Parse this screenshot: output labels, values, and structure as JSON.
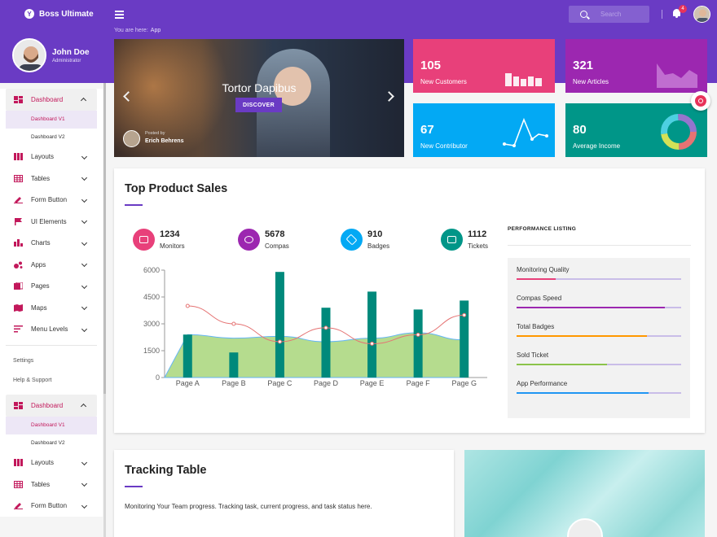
{
  "header": {
    "brand": "Boss Ultimate",
    "breadcrumb_label": "You are here:",
    "breadcrumb_current": "App",
    "search_placeholder": "Search",
    "notification_count": "4"
  },
  "profile": {
    "name": "John Doe",
    "role": "Administrator"
  },
  "sidebar": {
    "menu": [
      {
        "label": "Dashboard",
        "icon": "dashboard-icon",
        "open": true
      },
      {
        "label": "Dashboard V1",
        "sub": true,
        "active": true
      },
      {
        "label": "Dashboard V2",
        "sub": true
      },
      {
        "label": "Layouts",
        "icon": "layouts-icon"
      },
      {
        "label": "Tables",
        "icon": "tables-icon"
      },
      {
        "label": "Form Button",
        "icon": "form-button-icon"
      },
      {
        "label": "UI Elements",
        "icon": "flag-icon"
      },
      {
        "label": "Charts",
        "icon": "charts-icon"
      },
      {
        "label": "Apps",
        "icon": "apps-icon"
      },
      {
        "label": "Pages",
        "icon": "pages-icon"
      },
      {
        "label": "Maps",
        "icon": "maps-icon"
      },
      {
        "label": "Menu Levels",
        "icon": "menu-levels-icon"
      }
    ],
    "settings": "Settings",
    "help": "Help & Support",
    "menu2": [
      {
        "label": "Dashboard",
        "open": true
      },
      {
        "label": "Dashboard V1",
        "sub": true,
        "active": true
      },
      {
        "label": "Dashboard V2",
        "sub": true
      },
      {
        "label": "Layouts"
      },
      {
        "label": "Tables"
      },
      {
        "label": "Form Button"
      }
    ]
  },
  "hero": {
    "title": "Tortor Dapibus",
    "button": "DISCOVER",
    "posted_by": "Posted by",
    "author": "Erich Behrens"
  },
  "stats": [
    {
      "value": "105",
      "label": "New Customers",
      "color": "#e8407a"
    },
    {
      "value": "321",
      "label": "New Articles",
      "color": "#9c27b0"
    },
    {
      "value": "67",
      "label": "New Contributor",
      "color": "#03a9f4"
    },
    {
      "value": "80",
      "label": "Average Income",
      "color": "#009688"
    }
  ],
  "sales": {
    "title": "Top Product Sales",
    "kpis": [
      {
        "value": "1234",
        "label": "Monitors",
        "color": "#e8407a"
      },
      {
        "value": "5678",
        "label": "Compas",
        "color": "#9c27b0"
      },
      {
        "value": "910",
        "label": "Badges",
        "color": "#03a9f4"
      },
      {
        "value": "1112",
        "label": "Tickets",
        "color": "#009688"
      }
    ],
    "performance_title": "PERFORMANCE LISTING",
    "performance": [
      {
        "label": "Monitoring Quality",
        "value": 0.24,
        "color": "#e8407a"
      },
      {
        "label": "Compas Speed",
        "value": 0.9,
        "color": "#9c27b0"
      },
      {
        "label": "Total Badges",
        "value": 0.79,
        "color": "#ff9800"
      },
      {
        "label": "Sold Ticket",
        "value": 0.55,
        "color": "#8bc34a"
      },
      {
        "label": "App Performance",
        "value": 0.8,
        "color": "#2196f3"
      }
    ]
  },
  "chart_data": {
    "type": "bar",
    "categories": [
      "Page A",
      "Page B",
      "Page C",
      "Page D",
      "Page E",
      "Page F",
      "Page G"
    ],
    "y_ticks": [
      0,
      1500,
      3000,
      4500,
      6000
    ],
    "ylim": [
      0,
      6000
    ],
    "series": [
      {
        "values": [
          2400,
          1400,
          5900,
          3900,
          4800,
          3800,
          4300
        ],
        "kind": "bar",
        "color": "#00897b"
      },
      {
        "values": [
          2400,
          2200,
          2300,
          2000,
          2200,
          2500,
          2100
        ],
        "kind": "area",
        "color": "#9ccc65"
      },
      {
        "values": [
          4000,
          3000,
          2000,
          2780,
          1890,
          2390,
          3490
        ],
        "kind": "line",
        "color": "#e57373"
      }
    ],
    "grid": false
  },
  "tracking": {
    "title": "Tracking Table",
    "description": "Monitoring Your Team progress. Tracking task, current progress, and task status here."
  }
}
